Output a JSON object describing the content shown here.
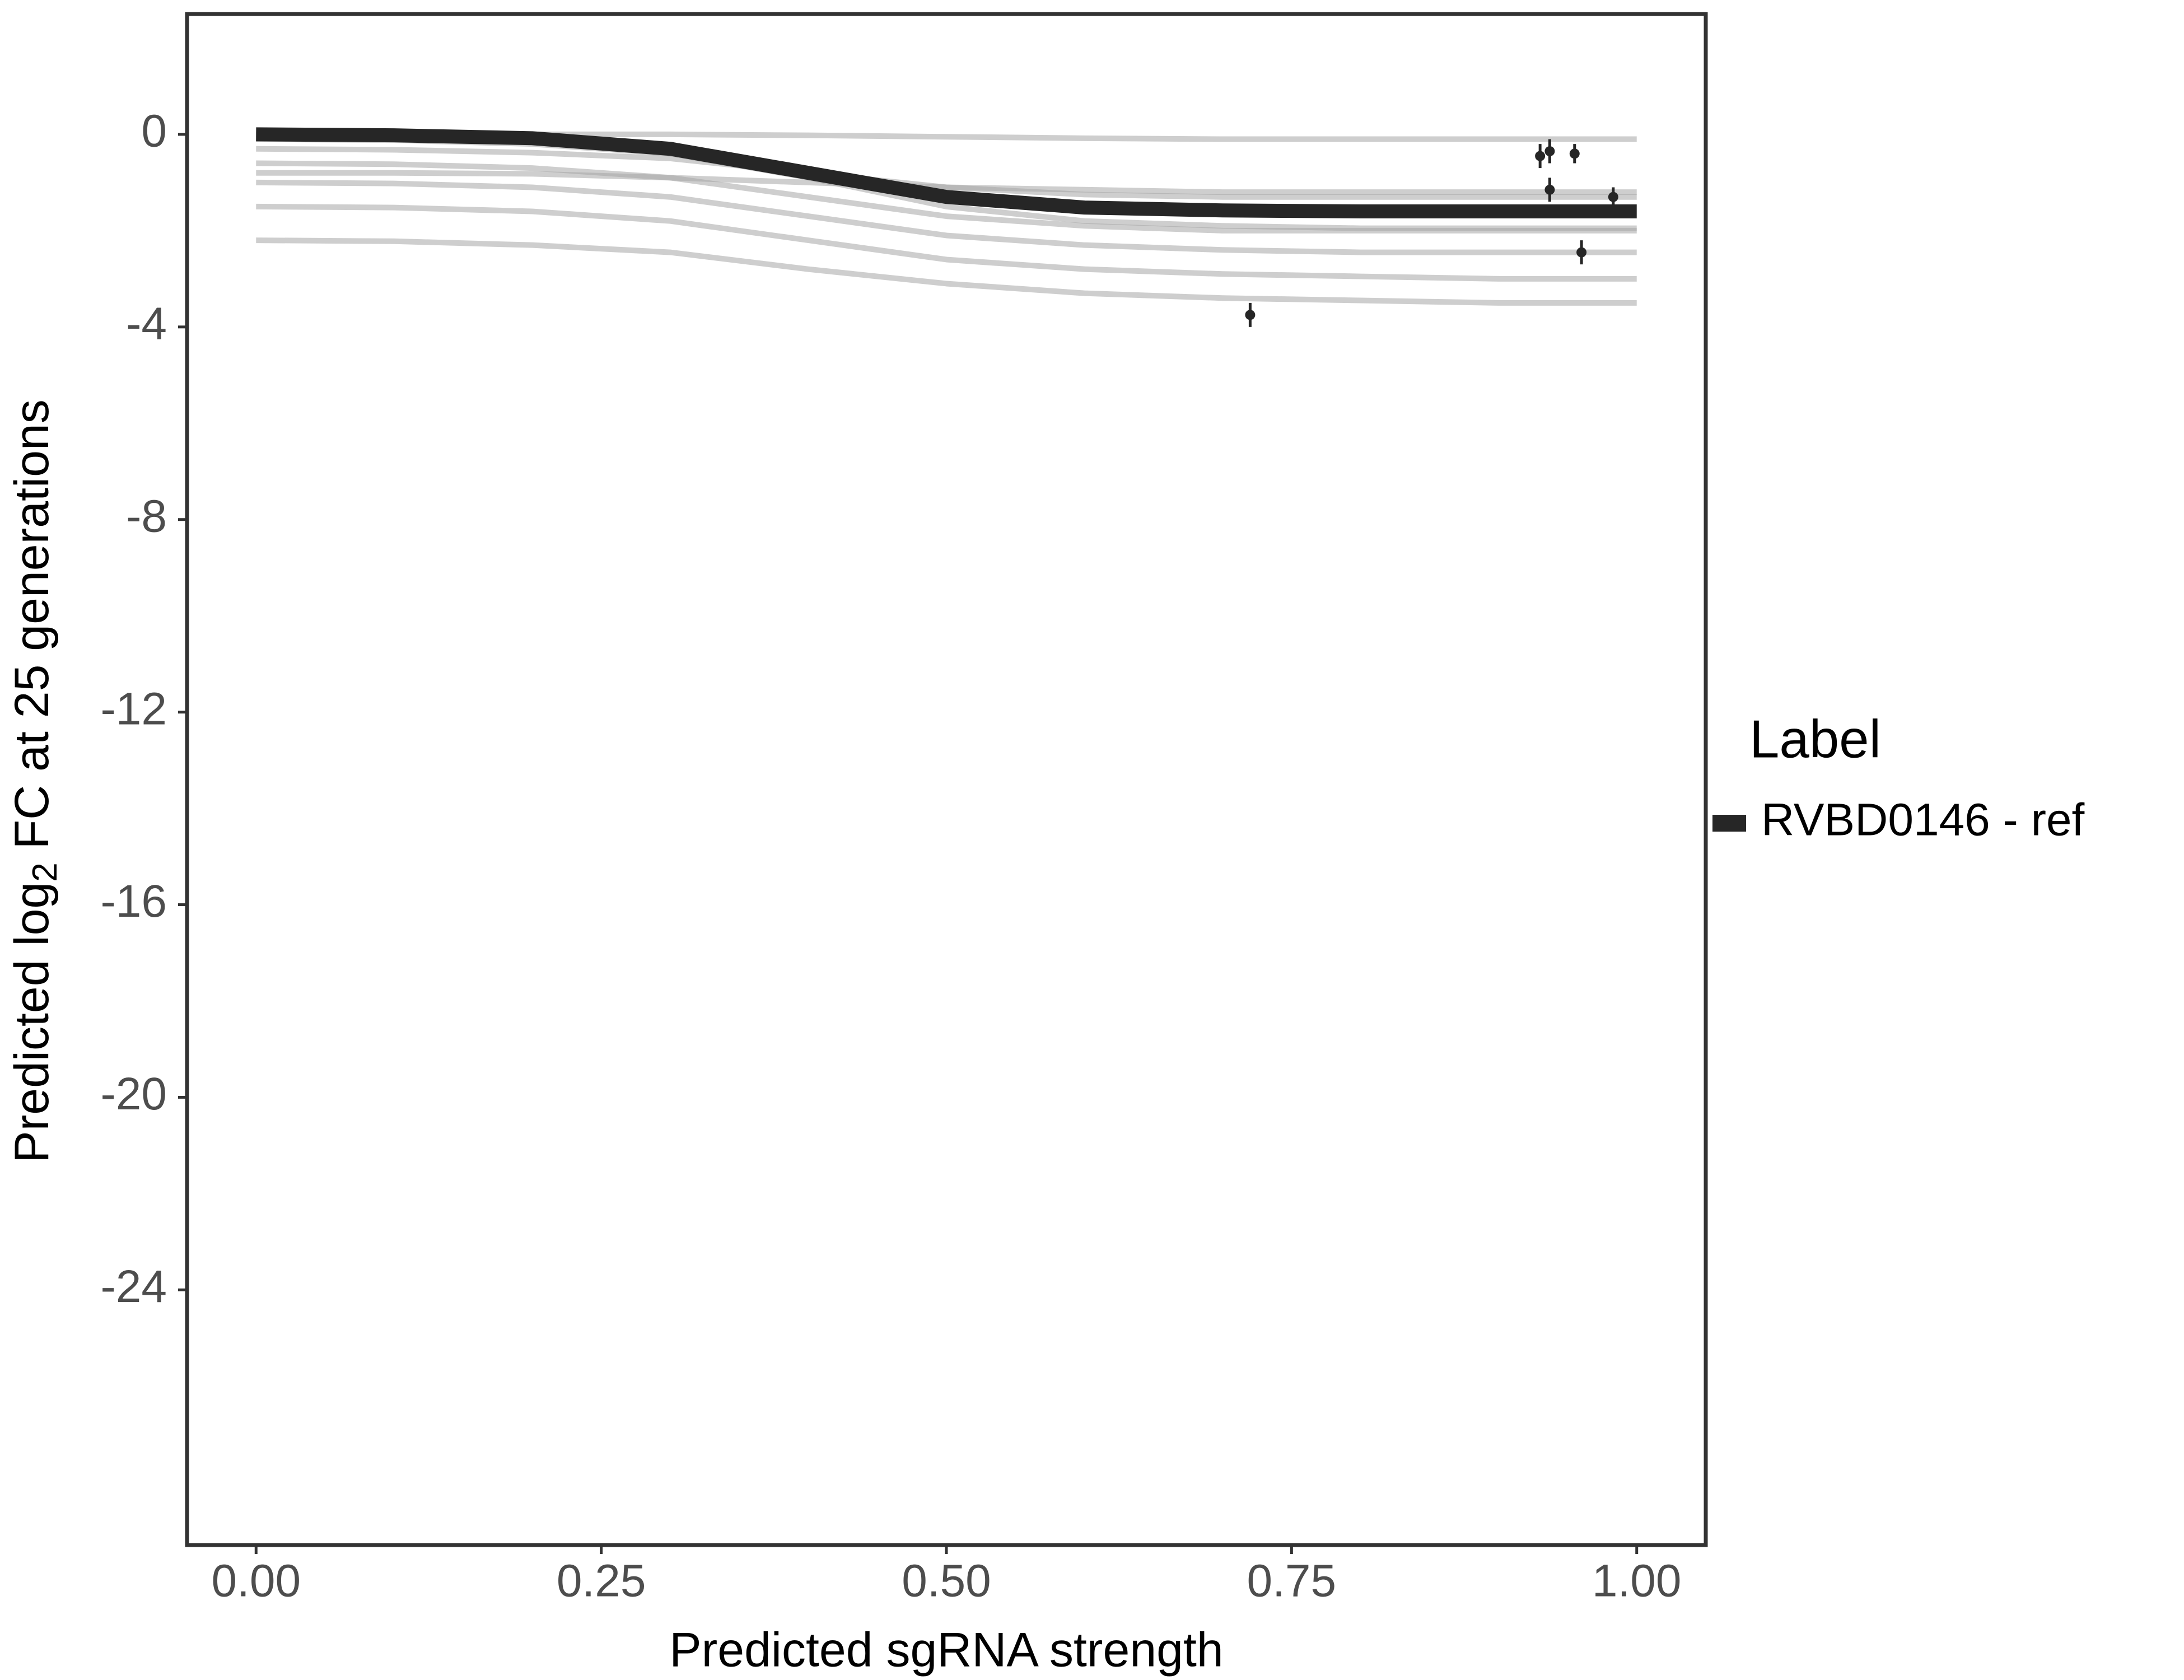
{
  "chart_data": {
    "type": "line",
    "x_label": "Predicted sgRNA strength",
    "y_label": {
      "before": "Predicted  log",
      "sub": "2",
      "after": " FC at 25 generations"
    },
    "legend_title": "Label",
    "xlim": [
      -0.05,
      1.05
    ],
    "ylim": [
      -29.3,
      2.5
    ],
    "xticks": [
      {
        "value": 0,
        "label": "0.00"
      },
      {
        "value": 0.25,
        "label": "0.25"
      },
      {
        "value": 0.5,
        "label": "0.50"
      },
      {
        "value": 0.75,
        "label": "0.75"
      },
      {
        "value": 1,
        "label": "1.00"
      }
    ],
    "yticks": [
      0,
      -4,
      -8,
      -12,
      -16,
      -20,
      -24
    ],
    "x": [
      0,
      0.1,
      0.2,
      0.3,
      0.4,
      0.5,
      0.6,
      0.7,
      0.8,
      0.9,
      1.0
    ],
    "series": [
      {
        "name": "RVBD0146 - ref",
        "color": "#262626",
        "values": [
          0,
          -0.02,
          -0.08,
          -0.3,
          -0.8,
          -1.3,
          -1.52,
          -1.58,
          -1.6,
          -1.6,
          -1.6
        ]
      }
    ],
    "draws_color": "#a6a6a6",
    "draws": [
      [
        0,
        0,
        0,
        0,
        -0.02,
        -0.05,
        -0.08,
        -0.1,
        -0.1,
        -0.1,
        -0.1
      ],
      [
        -0.3,
        -0.32,
        -0.38,
        -0.5,
        -0.8,
        -1.1,
        -1.25,
        -1.3,
        -1.3,
        -1.3,
        -1.3
      ],
      [
        -0.6,
        -0.62,
        -0.7,
        -0.9,
        -1.3,
        -1.7,
        -1.9,
        -2,
        -2,
        -2,
        -2
      ],
      [
        -1,
        -1.02,
        -1.1,
        -1.3,
        -1.7,
        -2.1,
        -2.3,
        -2.4,
        -2.45,
        -2.45,
        -2.45
      ],
      [
        -1.5,
        -1.52,
        -1.6,
        -1.8,
        -2.2,
        -2.6,
        -2.8,
        -2.9,
        -2.95,
        -3,
        -3
      ],
      [
        -2.2,
        -2.22,
        -2.3,
        -2.45,
        -2.8,
        -3.1,
        -3.3,
        -3.4,
        -3.45,
        -3.5,
        -3.5
      ],
      [
        -0.1,
        -0.12,
        -0.2,
        -0.4,
        -0.9,
        -1.5,
        -1.8,
        -1.9,
        -1.95,
        -1.95,
        -1.95
      ],
      [
        -0.8,
        -0.8,
        -0.82,
        -0.9,
        -1.0,
        -1.1,
        -1.15,
        -1.2,
        -1.2,
        -1.2,
        -1.2
      ]
    ],
    "observed": {
      "color": "#262626",
      "x": [
        0.72,
        0.93,
        0.937,
        0.937,
        0.955,
        0.96,
        0.983
      ],
      "values": [
        -3.75,
        -0.45,
        -0.35,
        -1.15,
        -0.4,
        -2.45,
        -1.3
      ],
      "errors": [
        0.25,
        0.25,
        0.25,
        0.25,
        0.2,
        0.25,
        0.2
      ]
    }
  }
}
